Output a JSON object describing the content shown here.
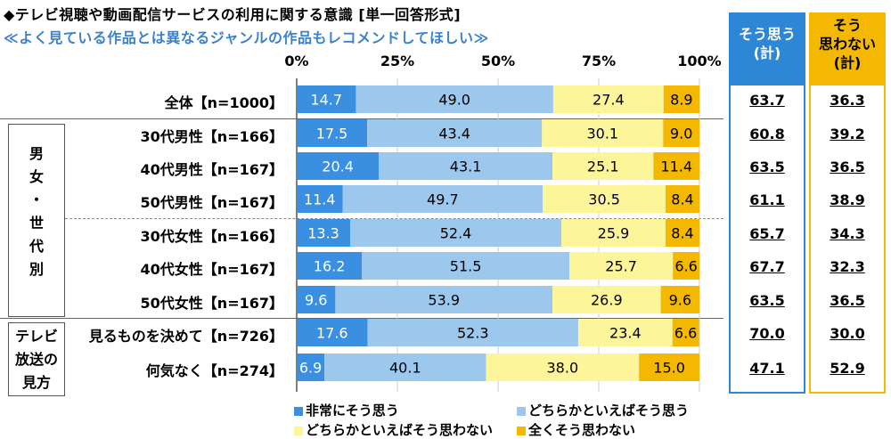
{
  "title": "◆テレビ視聴や動画配信サービスの利用に関する意識 [単一回答形式]",
  "subtitle": "≪よく見ている作品とは異なるジャンルの作品もレコメンドしてほしい≫",
  "colors": {
    "strongly_agree": "#3a8fe0",
    "somewhat_agree": "#9cc8ee",
    "somewhat_disagree": "#fdf59a",
    "strongly_disagree": "#f5b800",
    "agree_box": "#2e86d6",
    "disagree_box": "#f5b800"
  },
  "summary_headers": {
    "agree": [
      "そう思う",
      "(計)"
    ],
    "disagree": [
      "そう",
      "思わない",
      "(計)"
    ]
  },
  "groups": {
    "gender_age": [
      "男",
      "女",
      "・",
      "世",
      "代",
      "別"
    ],
    "tv_watching": [
      "テレビ",
      "放送の",
      "見方"
    ]
  },
  "chart_data": {
    "type": "bar",
    "orientation": "horizontal",
    "stacked": true,
    "title": "◆テレビ視聴や動画配信サービスの利用に関する意識 [単一回答形式]",
    "subtitle": "≪よく見ている作品とは異なるジャンルの作品もレコメンドしてほしい≫",
    "xlim": [
      0,
      100
    ],
    "x_ticks": [
      "0%",
      "25%",
      "50%",
      "75%",
      "100%"
    ],
    "categories": [
      "全体【n=1000】",
      "30代男性【n=166】",
      "40代男性【n=167】",
      "50代男性【n=167】",
      "30代女性【n=166】",
      "40代女性【n=167】",
      "50代女性【n=167】",
      "見るものを決めて【n=726】",
      "何気なく【n=274】"
    ],
    "series": [
      {
        "name": "非常にそう思う",
        "values": [
          14.7,
          17.5,
          20.4,
          11.4,
          13.3,
          16.2,
          9.6,
          17.6,
          6.9
        ]
      },
      {
        "name": "どちらかといえばそう思う",
        "values": [
          49.0,
          43.4,
          43.1,
          49.7,
          52.4,
          51.5,
          53.9,
          52.3,
          40.1
        ]
      },
      {
        "name": "どちらかといえばそう思わない",
        "values": [
          27.4,
          30.1,
          25.1,
          30.5,
          25.9,
          25.7,
          26.9,
          23.4,
          38.0
        ]
      },
      {
        "name": "全くそう思わない",
        "values": [
          8.9,
          9.0,
          11.4,
          8.4,
          8.4,
          6.6,
          9.6,
          6.6,
          15.0
        ]
      }
    ],
    "agree_total": [
      63.7,
      60.8,
      63.5,
      61.1,
      65.7,
      67.7,
      63.5,
      70.0,
      47.1
    ],
    "disagree_total": [
      36.3,
      39.2,
      36.5,
      38.9,
      34.3,
      32.3,
      36.5,
      30.0,
      52.9
    ],
    "legend": [
      "非常にそう思う",
      "どちらかといえばそう思う",
      "どちらかといえばそう思わない",
      "全くそう思わない"
    ]
  }
}
